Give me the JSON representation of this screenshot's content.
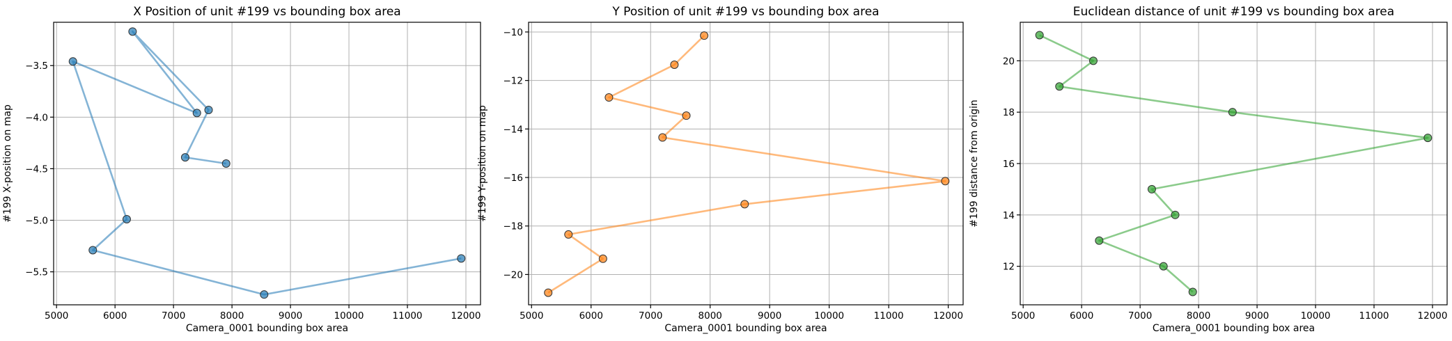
{
  "chart_data": [
    {
      "type": "line",
      "title": "X Position of unit #199 vs bounding box area",
      "xlabel": "Camera_0001 bounding box area",
      "ylabel": "#199 X-position on map",
      "xlim": [
        4950,
        12250
      ],
      "ylim": [
        -5.82,
        -3.08
      ],
      "xticks": [
        5000,
        6000,
        7000,
        8000,
        9000,
        10000,
        11000,
        12000
      ],
      "xtick_labels": [
        "5000",
        "6000",
        "7000",
        "8000",
        "9000",
        "10000",
        "11000",
        "12000"
      ],
      "yticks": [
        -3.5,
        -4.0,
        -4.5,
        -5.0,
        -5.5
      ],
      "ytick_labels": [
        "−3.5",
        "−4.0",
        "−4.5",
        "−5.0",
        "−5.5"
      ],
      "grid": true,
      "color": "#1f77b4",
      "series": [
        {
          "x": [
            7900,
            7200,
            7600,
            6300,
            7400,
            5280,
            6200,
            5620,
            8550,
            11920
          ],
          "y": [
            -4.45,
            -4.39,
            -3.93,
            -3.17,
            -3.96,
            -3.46,
            -4.99,
            -5.29,
            -5.72,
            -5.37
          ]
        }
      ]
    },
    {
      "type": "line",
      "title": "Y Position of unit #199 vs bounding box area",
      "xlabel": "Camera_0001 bounding box area",
      "ylabel": "#199 Y-position on map",
      "xlim": [
        4950,
        12250
      ],
      "ylim": [
        -21.25,
        -9.6
      ],
      "xticks": [
        5000,
        6000,
        7000,
        8000,
        9000,
        10000,
        11000,
        12000
      ],
      "xtick_labels": [
        "5000",
        "6000",
        "7000",
        "8000",
        "9000",
        "10000",
        "11000",
        "12000"
      ],
      "yticks": [
        -10,
        -12,
        -14,
        -16,
        -18,
        -20
      ],
      "ytick_labels": [
        "−10",
        "−12",
        "−14",
        "−16",
        "−18",
        "−20"
      ],
      "grid": true,
      "color": "#ff7f0e",
      "series": [
        {
          "x": [
            7900,
            7400,
            6300,
            7600,
            7200,
            11950,
            8580,
            5620,
            6200,
            5280
          ],
          "y": [
            -10.15,
            -11.35,
            -12.7,
            -13.45,
            -14.35,
            -16.15,
            -17.1,
            -18.35,
            -19.35,
            -20.75
          ]
        }
      ]
    },
    {
      "type": "line",
      "title": "Euclidean distance of unit #199 vs bounding box area",
      "xlabel": "Camera_0001 bounding box area",
      "ylabel": "#199 distance from origin",
      "xlim": [
        4950,
        12250
      ],
      "ylim": [
        10.5,
        21.5
      ],
      "xticks": [
        5000,
        6000,
        7000,
        8000,
        9000,
        10000,
        11000,
        12000
      ],
      "xtick_labels": [
        "5000",
        "6000",
        "7000",
        "8000",
        "9000",
        "10000",
        "11000",
        "12000"
      ],
      "yticks": [
        12,
        14,
        16,
        18,
        20
      ],
      "ytick_labels": [
        "12",
        "14",
        "16",
        "18",
        "20"
      ],
      "grid": true,
      "color": "#2ca02c",
      "series": [
        {
          "x": [
            5280,
            6200,
            5620,
            8580,
            11920,
            7200,
            7600,
            6300,
            7400,
            7900
          ],
          "y": [
            21,
            20,
            19,
            18,
            17,
            15,
            14,
            13,
            12,
            11
          ]
        }
      ]
    }
  ]
}
